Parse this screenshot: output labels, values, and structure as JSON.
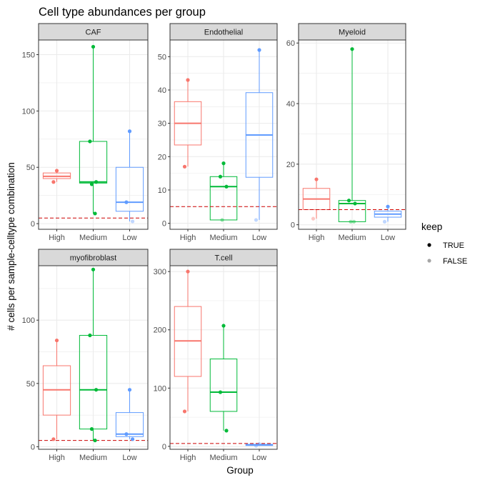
{
  "colors": {
    "High": "#F8766D",
    "Medium": "#00BA38",
    "Low": "#619CFF",
    "threshold": "#CC0000",
    "strip_bg": "#D9D9D9",
    "grid": "#EBEBEB",
    "panel_border": "#333333"
  },
  "chart_data": {
    "type": "boxplot",
    "title": "Cell type abundances per group",
    "xlabel": "Group",
    "ylabel": "# cells per sample-celltype combination",
    "categories": [
      "High",
      "Medium",
      "Low"
    ],
    "threshold": 5,
    "legend": {
      "title": "keep",
      "position": "right",
      "entries": [
        "TRUE",
        "FALSE"
      ]
    },
    "panels": [
      {
        "name": "CAF",
        "ylim": [
          -5,
          163
        ],
        "yticks": [
          0,
          50,
          100,
          150
        ],
        "boxes": [
          {
            "group": "High",
            "q1": 40,
            "median": 42,
            "q3": 45,
            "min": 37,
            "max": 47
          },
          {
            "group": "Medium",
            "q1": 36,
            "median": 37,
            "q3": 73,
            "min": 9,
            "max": 157
          },
          {
            "group": "Low",
            "q1": 11,
            "median": 19,
            "q3": 50,
            "min": 2,
            "max": 82
          }
        ],
        "points": [
          {
            "group": "High",
            "y": 47,
            "keep": "TRUE"
          },
          {
            "group": "High",
            "y": 37,
            "keep": "TRUE"
          },
          {
            "group": "Medium",
            "y": 157,
            "keep": "TRUE"
          },
          {
            "group": "Medium",
            "y": 73,
            "keep": "TRUE"
          },
          {
            "group": "Medium",
            "y": 37,
            "keep": "TRUE"
          },
          {
            "group": "Medium",
            "y": 35,
            "keep": "TRUE"
          },
          {
            "group": "Medium",
            "y": 9,
            "keep": "TRUE"
          },
          {
            "group": "Low",
            "y": 82,
            "keep": "TRUE"
          },
          {
            "group": "Low",
            "y": 19,
            "keep": "TRUE"
          },
          {
            "group": "Low",
            "y": 2,
            "keep": "FALSE"
          }
        ]
      },
      {
        "name": "Endothelial",
        "ylim": [
          -1.8,
          55
        ],
        "yticks": [
          0,
          10,
          20,
          30,
          40,
          50
        ],
        "boxes": [
          {
            "group": "High",
            "q1": 23.5,
            "median": 30,
            "q3": 36.5,
            "min": 17,
            "max": 43
          },
          {
            "group": "Medium",
            "q1": 1,
            "median": 11,
            "q3": 14,
            "min": 1,
            "max": 18
          },
          {
            "group": "Low",
            "q1": 13.8,
            "median": 26.5,
            "q3": 39.2,
            "min": 1,
            "max": 52
          }
        ],
        "points": [
          {
            "group": "High",
            "y": 43,
            "keep": "TRUE"
          },
          {
            "group": "High",
            "y": 17,
            "keep": "TRUE"
          },
          {
            "group": "Medium",
            "y": 18,
            "keep": "TRUE"
          },
          {
            "group": "Medium",
            "y": 14,
            "keep": "TRUE"
          },
          {
            "group": "Medium",
            "y": 11,
            "keep": "TRUE"
          },
          {
            "group": "Medium",
            "y": 1,
            "keep": "FALSE"
          },
          {
            "group": "Low",
            "y": 52,
            "keep": "TRUE"
          },
          {
            "group": "Low",
            "y": 1,
            "keep": "FALSE"
          }
        ]
      },
      {
        "name": "Myeloid",
        "ylim": [
          -1.5,
          61
        ],
        "yticks": [
          0,
          20,
          40,
          60
        ],
        "boxes": [
          {
            "group": "High",
            "q1": 5,
            "median": 8.5,
            "q3": 12,
            "min": 2,
            "max": 15
          },
          {
            "group": "Medium",
            "q1": 1,
            "median": 7,
            "q3": 8,
            "min": 1,
            "max": 58
          },
          {
            "group": "Low",
            "q1": 2.5,
            "median": 3.5,
            "q3": 4.5,
            "min": 1,
            "max": 6
          }
        ],
        "points": [
          {
            "group": "High",
            "y": 15,
            "keep": "TRUE"
          },
          {
            "group": "High",
            "y": 2,
            "keep": "FALSE"
          },
          {
            "group": "Medium",
            "y": 58,
            "keep": "TRUE"
          },
          {
            "group": "Medium",
            "y": 8,
            "keep": "TRUE"
          },
          {
            "group": "Medium",
            "y": 7,
            "keep": "TRUE"
          },
          {
            "group": "Medium",
            "y": 1,
            "keep": "FALSE"
          },
          {
            "group": "Medium",
            "y": 1,
            "keep": "FALSE"
          },
          {
            "group": "Low",
            "y": 6,
            "keep": "TRUE"
          },
          {
            "group": "Low",
            "y": 1,
            "keep": "FALSE"
          }
        ]
      },
      {
        "name": "myofibroblast",
        "ylim": [
          -2,
          143
        ],
        "yticks": [
          0,
          50,
          100
        ],
        "boxes": [
          {
            "group": "High",
            "q1": 25,
            "median": 45,
            "q3": 64,
            "min": 6,
            "max": 84
          },
          {
            "group": "Medium",
            "q1": 14,
            "median": 45,
            "q3": 88,
            "min": 5,
            "max": 140
          },
          {
            "group": "Low",
            "q1": 8,
            "median": 10,
            "q3": 27,
            "min": 6,
            "max": 45
          }
        ],
        "points": [
          {
            "group": "High",
            "y": 84,
            "keep": "TRUE"
          },
          {
            "group": "High",
            "y": 6,
            "keep": "TRUE"
          },
          {
            "group": "Medium",
            "y": 140,
            "keep": "TRUE"
          },
          {
            "group": "Medium",
            "y": 88,
            "keep": "TRUE"
          },
          {
            "group": "Medium",
            "y": 45,
            "keep": "TRUE"
          },
          {
            "group": "Medium",
            "y": 14,
            "keep": "TRUE"
          },
          {
            "group": "Medium",
            "y": 5,
            "keep": "TRUE"
          },
          {
            "group": "Low",
            "y": 45,
            "keep": "TRUE"
          },
          {
            "group": "Low",
            "y": 10,
            "keep": "TRUE"
          },
          {
            "group": "Low",
            "y": 6,
            "keep": "TRUE"
          }
        ]
      },
      {
        "name": "T.cell",
        "ylim": [
          -5,
          310
        ],
        "yticks": [
          0,
          100,
          200,
          300
        ],
        "boxes": [
          {
            "group": "High",
            "q1": 120,
            "median": 181,
            "q3": 240,
            "min": 60,
            "max": 300
          },
          {
            "group": "Medium",
            "q1": 60,
            "median": 93,
            "q3": 150,
            "min": 27,
            "max": 207
          },
          {
            "group": "Low",
            "q1": 1.5,
            "median": 2.5,
            "q3": 3.5,
            "min": 1,
            "max": 4
          }
        ],
        "points": [
          {
            "group": "High",
            "y": 300,
            "keep": "TRUE"
          },
          {
            "group": "High",
            "y": 60,
            "keep": "TRUE"
          },
          {
            "group": "Medium",
            "y": 207,
            "keep": "TRUE"
          },
          {
            "group": "Medium",
            "y": 93,
            "keep": "TRUE"
          },
          {
            "group": "Medium",
            "y": 27,
            "keep": "TRUE"
          },
          {
            "group": "Low",
            "y": 4,
            "keep": "FALSE"
          },
          {
            "group": "Low",
            "y": 1,
            "keep": "FALSE"
          }
        ]
      }
    ]
  }
}
